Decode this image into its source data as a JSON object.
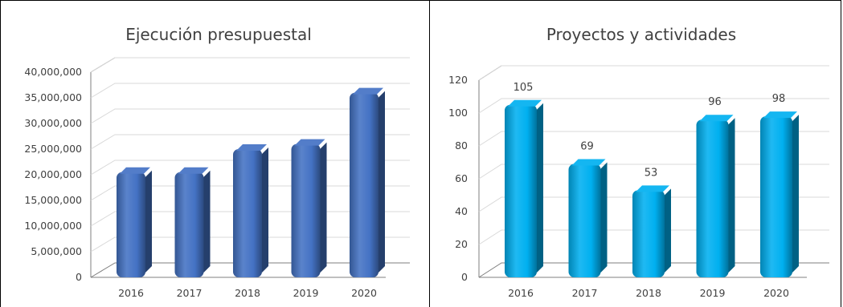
{
  "chart_data": [
    {
      "type": "bar",
      "title": "Ejecución presupuestal",
      "categories": [
        "2016",
        "2017",
        "2018",
        "2019",
        "2020"
      ],
      "values": [
        20500000,
        20500000,
        25000000,
        26000000,
        36000000
      ],
      "ylim": [
        0,
        40000000
      ],
      "yticks": [
        "0",
        "5,000,000",
        "10,000,000",
        "15,000,000",
        "20,000,000",
        "25,000,000",
        "30,000,000",
        "35,000,000",
        "40,000,000"
      ],
      "data_labels": [],
      "color": "#4472c4",
      "grid": true,
      "style": "3d-cylinder"
    },
    {
      "type": "bar",
      "title": "Proyectos y actividades",
      "categories": [
        "2016",
        "2017",
        "2018",
        "2019",
        "2020"
      ],
      "values": [
        105,
        69,
        53,
        96,
        98
      ],
      "ylim": [
        0,
        120
      ],
      "yticks": [
        "0",
        "20",
        "40",
        "60",
        "80",
        "100",
        "120"
      ],
      "data_labels": [
        "105",
        "69",
        "53",
        "96",
        "98"
      ],
      "color": "#00b0f0",
      "grid": true,
      "style": "3d-cylinder"
    }
  ]
}
